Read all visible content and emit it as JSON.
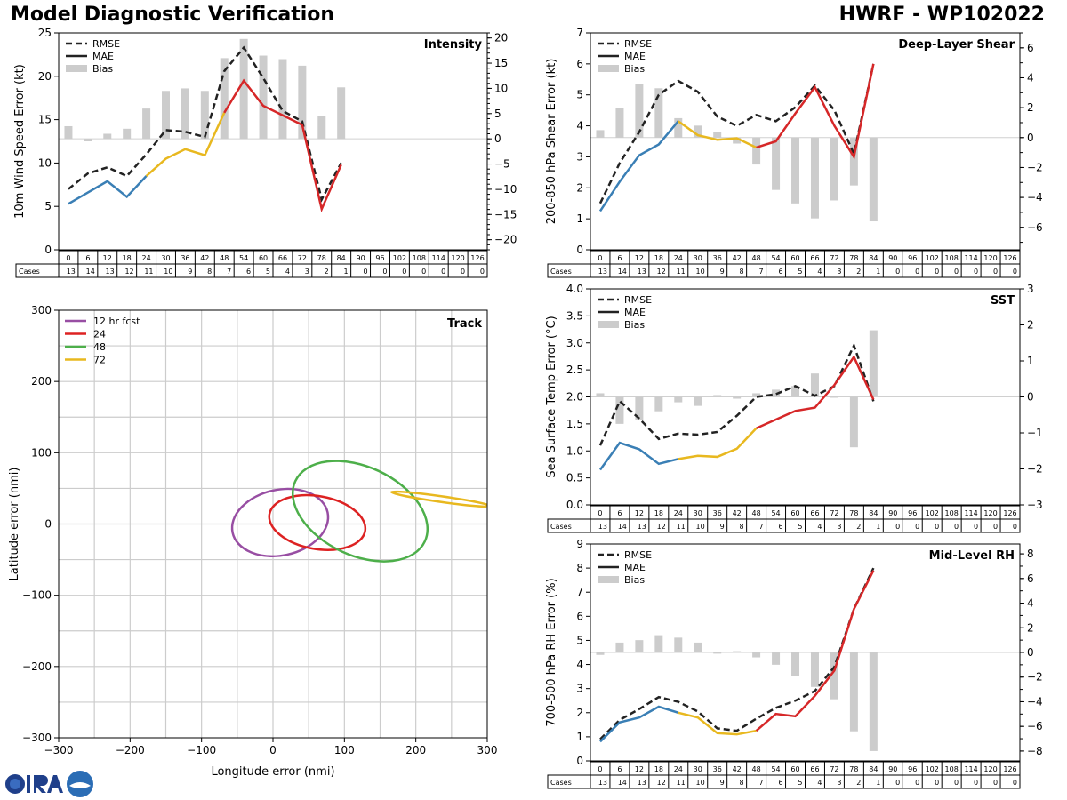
{
  "header": {
    "title_left": "Model Diagnostic Verification",
    "title_right": "HWRF - WP102022"
  },
  "logo": {
    "text": "CIRA"
  },
  "colors": {
    "rmse": "#222222",
    "bias": "#cccccc",
    "seg_0_18": "#3a7fb5",
    "seg_24_42": "#e8b81f",
    "seg_48_plus": "#d62728",
    "track_12": "#984ea3",
    "track_24": "#dd2222",
    "track_48": "#4daf4a",
    "track_72": "#e8b81f",
    "grid": "#cccccc"
  },
  "legend_labels": {
    "rmse": "RMSE",
    "mae": "MAE",
    "bias": "Bias"
  },
  "cases_label": "Cases",
  "lead_times": [
    "0",
    "6",
    "12",
    "18",
    "24",
    "30",
    "36",
    "42",
    "48",
    "54",
    "60",
    "66",
    "72",
    "78",
    "84",
    "90",
    "96",
    "102",
    "108",
    "114",
    "120",
    "126"
  ],
  "cases": [
    "13",
    "14",
    "13",
    "12",
    "11",
    "10",
    "9",
    "8",
    "7",
    "6",
    "5",
    "4",
    "3",
    "2",
    "1",
    "0",
    "0",
    "0",
    "0",
    "0",
    "0",
    "0"
  ],
  "chart_data": [
    {
      "id": "intensity",
      "type": "line",
      "title": "Intensity",
      "ylabel": "10m Wind Speed Error (kt)",
      "ylim": [
        0,
        25
      ],
      "yticks": [
        "0",
        "5",
        "10",
        "15",
        "20",
        "25"
      ],
      "ylim_right": [
        -22,
        21
      ],
      "yticks_right": [
        "−20",
        "−15",
        "−10",
        "−5",
        "0",
        "5",
        "10",
        "15",
        "20"
      ],
      "legend": "top-left",
      "x": [
        0,
        6,
        12,
        18,
        24,
        30,
        36,
        42,
        48,
        54,
        60,
        66,
        72,
        78,
        84
      ],
      "series": [
        {
          "name": "RMSE",
          "values": [
            7.0,
            8.8,
            9.5,
            8.5,
            11.0,
            13.8,
            13.6,
            13.0,
            20.6,
            23.3,
            19.8,
            16.0,
            14.8,
            5.8,
            10.0
          ]
        },
        {
          "name": "MAE",
          "values": [
            5.3,
            6.6,
            7.9,
            6.1,
            8.5,
            10.5,
            11.6,
            10.9,
            15.8,
            19.5,
            16.6,
            15.5,
            14.4,
            4.7,
            9.8
          ]
        },
        {
          "name": "Bias",
          "values": [
            2.5,
            -0.5,
            1.0,
            2.0,
            6.0,
            9.5,
            10.0,
            9.5,
            16.0,
            19.8,
            16.5,
            15.8,
            14.5,
            4.5,
            10.2
          ]
        }
      ]
    },
    {
      "id": "shear",
      "type": "line",
      "title": "Deep-Layer Shear",
      "ylabel": "200-850 hPa Shear Error (kt)",
      "ylim": [
        0,
        7
      ],
      "yticks": [
        "0",
        "1",
        "2",
        "3",
        "4",
        "5",
        "6",
        "7"
      ],
      "ylim_right": [
        -7.5,
        7.0
      ],
      "yticks_right": [
        "−6",
        "−4",
        "−2",
        "0",
        "2",
        "4",
        "6"
      ],
      "legend": "top-left",
      "x": [
        0,
        6,
        12,
        18,
        24,
        30,
        36,
        42,
        48,
        54,
        60,
        66,
        72,
        78,
        84
      ],
      "series": [
        {
          "name": "RMSE",
          "values": [
            1.5,
            2.8,
            3.8,
            5.0,
            5.45,
            5.1,
            4.3,
            4.0,
            4.35,
            4.15,
            4.6,
            5.3,
            4.5,
            3.1,
            6.0
          ]
        },
        {
          "name": "MAE",
          "values": [
            1.25,
            2.2,
            3.05,
            3.4,
            4.15,
            3.7,
            3.55,
            3.6,
            3.3,
            3.5,
            4.4,
            5.25,
            4.0,
            3.0,
            6.0
          ]
        },
        {
          "name": "Bias",
          "values": [
            0.5,
            2.0,
            3.6,
            3.3,
            1.3,
            0.8,
            0.4,
            -0.4,
            -1.8,
            -3.5,
            -4.4,
            -5.4,
            -4.2,
            -3.2,
            -5.6
          ]
        }
      ]
    },
    {
      "id": "sst",
      "type": "line",
      "title": "SST",
      "ylabel": "Sea Surface Temp Error (°C)",
      "ylim": [
        0,
        4
      ],
      "yticks": [
        "0.0",
        "0.5",
        "1.0",
        "1.5",
        "2.0",
        "2.5",
        "3.0",
        "3.5",
        "4.0"
      ],
      "ylim_right": [
        -3,
        3
      ],
      "yticks_right": [
        "−3",
        "−2",
        "−1",
        "0",
        "1",
        "2",
        "3"
      ],
      "legend": "top-left",
      "x": [
        0,
        6,
        12,
        18,
        24,
        30,
        36,
        42,
        48,
        54,
        60,
        66,
        72,
        78,
        84
      ],
      "series": [
        {
          "name": "RMSE",
          "values": [
            1.1,
            1.92,
            1.6,
            1.22,
            1.32,
            1.3,
            1.35,
            1.65,
            2.0,
            2.05,
            2.2,
            2.02,
            2.2,
            2.95,
            1.92
          ]
        },
        {
          "name": "MAE",
          "values": [
            0.65,
            1.15,
            1.03,
            0.76,
            0.85,
            0.91,
            0.89,
            1.04,
            1.42,
            1.58,
            1.74,
            1.8,
            2.22,
            2.74,
            1.95
          ]
        },
        {
          "name": "Bias",
          "values": [
            0.1,
            -0.75,
            -0.65,
            -0.4,
            -0.15,
            -0.25,
            0.05,
            -0.05,
            0.1,
            0.2,
            0.3,
            0.65,
            0.0,
            -1.4,
            1.85
          ]
        }
      ]
    },
    {
      "id": "rh",
      "type": "line",
      "title": "Mid-Level RH",
      "ylabel": "700-500 hPa RH Error (%)",
      "ylim": [
        0,
        9
      ],
      "yticks": [
        "0",
        "1",
        "2",
        "3",
        "4",
        "5",
        "6",
        "7",
        "8",
        "9"
      ],
      "ylim_right": [
        -8.8,
        8.8
      ],
      "yticks_right": [
        "−8",
        "−6",
        "−4",
        "−2",
        "0",
        "2",
        "4",
        "6",
        "8"
      ],
      "legend": "top-left",
      "x": [
        0,
        6,
        12,
        18,
        24,
        30,
        36,
        42,
        48,
        54,
        60,
        66,
        72,
        78,
        84
      ],
      "series": [
        {
          "name": "RMSE",
          "values": [
            0.9,
            1.7,
            2.15,
            2.65,
            2.45,
            2.05,
            1.35,
            1.25,
            1.75,
            2.2,
            2.5,
            2.9,
            3.9,
            6.3,
            8.0
          ]
        },
        {
          "name": "MAE",
          "values": [
            0.8,
            1.6,
            1.8,
            2.25,
            2.0,
            1.8,
            1.15,
            1.1,
            1.25,
            1.95,
            1.85,
            2.7,
            3.75,
            6.3,
            7.9
          ]
        },
        {
          "name": "Bias",
          "values": [
            -0.2,
            0.8,
            1.0,
            1.4,
            1.2,
            0.8,
            -0.1,
            0.1,
            -0.4,
            -1.0,
            -1.9,
            -2.8,
            -3.8,
            -6.4,
            -8.0
          ]
        }
      ]
    },
    {
      "id": "track",
      "type": "scatter",
      "title": "Track",
      "xlabel": "Longitude error (nmi)",
      "ylabel": "Latitude error (nmi)",
      "xlim": [
        -300,
        300
      ],
      "ylim": [
        -300,
        300
      ],
      "xticks": [
        "−300",
        "−200",
        "−100",
        "0",
        "100",
        "200",
        "300"
      ],
      "yticks": [
        "−300",
        "−200",
        "−100",
        "0",
        "100",
        "200",
        "300"
      ],
      "legend": "top-left",
      "series": [
        {
          "name": "12 hr fcst",
          "center": [
            10,
            2
          ],
          "radius": [
            68,
            46
          ],
          "rotation_deg": -12
        },
        {
          "name": "24",
          "center": [
            62,
            2
          ],
          "radius": [
            68,
            37
          ],
          "rotation_deg": 10
        },
        {
          "name": "48",
          "center": [
            122,
            18
          ],
          "radius": [
            100,
            62
          ],
          "rotation_deg": 25
        },
        {
          "name": "72",
          "center": [
            235,
            35
          ],
          "radius": [
            70,
            4
          ],
          "rotation_deg": 8
        }
      ]
    }
  ]
}
